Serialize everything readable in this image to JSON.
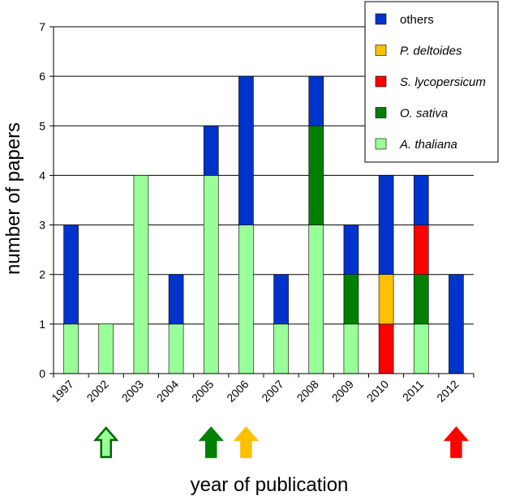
{
  "chart_data": {
    "type": "bar",
    "stacked": true,
    "title": "",
    "xlabel": "year of publication",
    "ylabel": "number of papers",
    "ylim": [
      0,
      7
    ],
    "yticks": [
      0,
      1,
      2,
      3,
      4,
      5,
      6,
      7
    ],
    "grid": "horizontal",
    "legend_position": "top-right",
    "categories": [
      "1997",
      "2002",
      "2003",
      "2004",
      "2005",
      "2006",
      "2007",
      "2008",
      "2009",
      "2010",
      "2011",
      "2012"
    ],
    "series": [
      {
        "name": "A. thaliana",
        "color": "#99ff99",
        "values": [
          1,
          1,
          4,
          1,
          4,
          3,
          1,
          3,
          1,
          0,
          1,
          0
        ]
      },
      {
        "name": "O. sativa",
        "color": "#008000",
        "values": [
          0,
          0,
          0,
          0,
          0,
          0,
          0,
          2,
          1,
          0,
          1,
          0
        ]
      },
      {
        "name": "S. lycopersicum",
        "color": "#ff0000",
        "values": [
          0,
          0,
          0,
          0,
          0,
          0,
          0,
          0,
          0,
          1,
          1,
          0
        ]
      },
      {
        "name": "P. deltoides",
        "color": "#ffc000",
        "values": [
          0,
          0,
          0,
          0,
          0,
          0,
          0,
          0,
          0,
          1,
          0,
          0
        ]
      },
      {
        "name": "others",
        "color": "#0033cc",
        "values": [
          2,
          0,
          0,
          1,
          1,
          3,
          1,
          1,
          1,
          2,
          1,
          2
        ]
      }
    ],
    "legend_order": [
      "others",
      "P. deltoides",
      "S. lycopersicum",
      "O. sativa",
      "A. thaliana"
    ],
    "markers": [
      {
        "year": "2002",
        "series": "A. thaliana",
        "fill": "#99ff99",
        "stroke": "#006600",
        "icon": "up-arrow-icon"
      },
      {
        "year": "2005",
        "series": "O. sativa",
        "fill": "#008000",
        "stroke": "#008000",
        "icon": "up-arrow-icon"
      },
      {
        "year": "2006",
        "series": "P. deltoides",
        "fill": "#ffc000",
        "stroke": "#ffc000",
        "icon": "up-arrow-icon"
      },
      {
        "year": "2012",
        "series": "S. lycopersicum",
        "fill": "#ff0000",
        "stroke": "#ff0000",
        "icon": "up-arrow-icon"
      }
    ]
  }
}
